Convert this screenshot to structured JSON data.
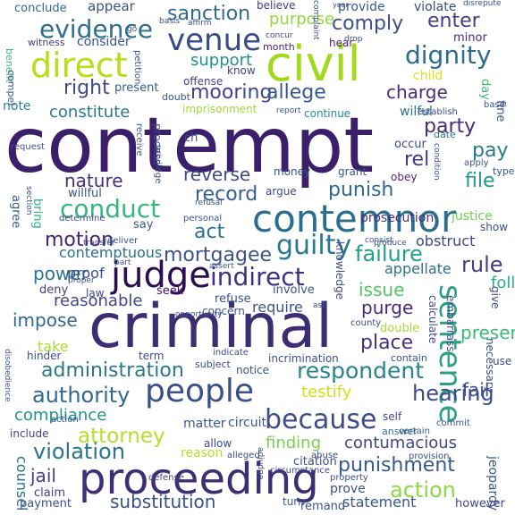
{
  "word_cloud": {
    "words": [
      {
        "text": "contempt",
        "color": "#3b1f6b"
      },
      {
        "text": "criminal",
        "color": "#3d2e74"
      },
      {
        "text": "proceeding",
        "color": "#3e2f75"
      },
      {
        "text": "civil",
        "color": "#a2d91f"
      },
      {
        "text": "contemnor",
        "color": "#2a6d8e"
      },
      {
        "text": "judge",
        "color": "#2a0e4f"
      },
      {
        "text": "people",
        "color": "#3c4f8a"
      },
      {
        "text": "direct",
        "color": "#b7de1a"
      },
      {
        "text": "indirect",
        "color": "#3f3182"
      },
      {
        "text": "venue",
        "color": "#394a88"
      },
      {
        "text": "evidence",
        "color": "#2d6f8e"
      },
      {
        "text": "dignity",
        "color": "#2e6c8e"
      },
      {
        "text": "mooring",
        "color": "#414487"
      },
      {
        "text": "sentence",
        "color": "#2d9f87"
      },
      {
        "text": "conduct",
        "color": "#36b77b"
      },
      {
        "text": "guilty",
        "color": "#2a788e"
      },
      {
        "text": "motion",
        "color": "#482576"
      },
      {
        "text": "mortgagee",
        "color": "#3b5289"
      },
      {
        "text": "because",
        "color": "#3e4c8a"
      },
      {
        "text": "respondent",
        "color": "#25848e"
      },
      {
        "text": "authority",
        "color": "#2f6b8e"
      },
      {
        "text": "hearing",
        "color": "#3f4a8a"
      },
      {
        "text": "attorney",
        "color": "#b5de2b"
      },
      {
        "text": "action",
        "color": "#8fd744"
      },
      {
        "text": "punishment",
        "color": "#38578c"
      },
      {
        "text": "administration",
        "color": "#29798e"
      },
      {
        "text": "violation",
        "color": "#2c738e"
      },
      {
        "text": "substitution",
        "color": "#3b508a"
      },
      {
        "text": "comply",
        "color": "#3d4d8a"
      },
      {
        "text": "enter",
        "color": "#433e85"
      },
      {
        "text": "sanction",
        "color": "#2f6b8e"
      },
      {
        "text": "right",
        "color": "#3f4889"
      },
      {
        "text": "allege",
        "color": "#39568c"
      },
      {
        "text": "charge",
        "color": "#472d7b"
      },
      {
        "text": "party",
        "color": "#472c7a"
      },
      {
        "text": "rel",
        "color": "#453781"
      },
      {
        "text": "pay",
        "color": "#2a788e"
      },
      {
        "text": "file",
        "color": "#1f9a8a"
      },
      {
        "text": "punish",
        "color": "#31688e"
      },
      {
        "text": "record",
        "color": "#365d8d"
      },
      {
        "text": "reverse",
        "color": "#3e4a89"
      },
      {
        "text": "nature",
        "color": "#46307e"
      },
      {
        "text": "act",
        "color": "#2c728e"
      },
      {
        "text": "rule",
        "color": "#433e85"
      },
      {
        "text": "failure",
        "color": "#1fa187"
      },
      {
        "text": "power",
        "color": "#2a768e"
      },
      {
        "text": "issue",
        "color": "#52c569"
      },
      {
        "text": "purge",
        "color": "#472a7a"
      },
      {
        "text": "impose",
        "color": "#31688e"
      },
      {
        "text": "place",
        "color": "#46337f"
      },
      {
        "text": "presence",
        "color": "#3aba76"
      },
      {
        "text": "follow",
        "color": "#2ab07f"
      },
      {
        "text": "testify",
        "color": "#cde11d"
      },
      {
        "text": "fail",
        "color": "#3b528b"
      },
      {
        "text": "compliance",
        "color": "#21918c"
      },
      {
        "text": "contumacious",
        "color": "#3f4889"
      },
      {
        "text": "finding",
        "color": "#7ad151"
      },
      {
        "text": "counsel",
        "color": "#2c728e"
      },
      {
        "text": "jail",
        "color": "#433e85"
      },
      {
        "text": "statement",
        "color": "#3a548c"
      },
      {
        "text": "reasonable",
        "color": "#404688"
      },
      {
        "text": "support",
        "color": "#21918c"
      },
      {
        "text": "purpose",
        "color": "#95d840"
      },
      {
        "text": "constitute",
        "color": "#2a788e"
      },
      {
        "text": "proof",
        "color": "#3e4c8a"
      },
      {
        "text": "contemptuous",
        "color": "#2e6e8e"
      },
      {
        "text": "appellate",
        "color": "#2d708e"
      },
      {
        "text": "obstruct",
        "color": "#3f4788"
      },
      {
        "text": "prosecution",
        "color": "#46307e"
      },
      {
        "text": "justice",
        "color": "#6ece58"
      },
      {
        "text": "take",
        "color": "#aadc32"
      },
      {
        "text": "reason",
        "color": "#b8de29"
      },
      {
        "text": "require",
        "color": "#3b528b"
      },
      {
        "text": "record",
        "color": "#365d8d"
      },
      {
        "text": "conclude",
        "color": "#2f6c8e"
      },
      {
        "text": "appear",
        "color": "#3a538b"
      },
      {
        "text": "provide",
        "color": "#38588c"
      },
      {
        "text": "violate",
        "color": "#3f4889"
      },
      {
        "text": "believe",
        "color": "#443a83"
      },
      {
        "text": "consider",
        "color": "#3b518b"
      },
      {
        "text": "witness",
        "color": "#433e85"
      },
      {
        "text": "hear",
        "color": "#482374"
      },
      {
        "text": "minor",
        "color": "#472d7b"
      },
      {
        "text": "month",
        "color": "#482677"
      },
      {
        "text": "know",
        "color": "#404588"
      },
      {
        "text": "present",
        "color": "#365c8d"
      },
      {
        "text": "offense",
        "color": "#414487"
      },
      {
        "text": "doubt",
        "color": "#38588c"
      },
      {
        "text": "note",
        "color": "#24868e"
      },
      {
        "text": "imprisonment",
        "color": "#a0da39"
      },
      {
        "text": "continue",
        "color": "#21918c"
      },
      {
        "text": "wilful",
        "color": "#2c728e"
      },
      {
        "text": "child",
        "color": "#d8e219"
      },
      {
        "text": "date",
        "color": "#2e6f8e"
      },
      {
        "text": "occur",
        "color": "#3e4989"
      },
      {
        "text": "obey",
        "color": "#482878"
      },
      {
        "text": "money",
        "color": "#3b528b"
      },
      {
        "text": "grant",
        "color": "#3b528b"
      },
      {
        "text": "willful",
        "color": "#3c508b"
      },
      {
        "text": "argue",
        "color": "#3e4a89"
      },
      {
        "text": "agree",
        "color": "#365d8d"
      },
      {
        "text": "bring",
        "color": "#2ab07f"
      },
      {
        "text": "say",
        "color": "#38588c"
      },
      {
        "text": "show",
        "color": "#3d4e8a"
      },
      {
        "text": "seek",
        "color": "#471063"
      },
      {
        "text": "involve",
        "color": "#3b528b"
      },
      {
        "text": "deny",
        "color": "#423f85"
      },
      {
        "text": "law",
        "color": "#3f4889"
      },
      {
        "text": "refuse",
        "color": "#3b518b"
      },
      {
        "text": "concern",
        "color": "#3a548c"
      },
      {
        "text": "double",
        "color": "#a8db34"
      },
      {
        "text": "contain",
        "color": "#3c4f8a"
      },
      {
        "text": "notice",
        "color": "#3c4f8a"
      },
      {
        "text": "incrimination",
        "color": "#3d4e8a"
      },
      {
        "text": "term",
        "color": "#3f4889"
      },
      {
        "text": "matter",
        "color": "#3a548c"
      },
      {
        "text": "circuit",
        "color": "#3b528b"
      },
      {
        "text": "allow",
        "color": "#3f4889"
      },
      {
        "text": "citation",
        "color": "#3d4e8a"
      },
      {
        "text": "include",
        "color": "#404588"
      },
      {
        "text": "claim",
        "color": "#423f85"
      },
      {
        "text": "payment",
        "color": "#3b528b"
      },
      {
        "text": "prove",
        "color": "#3d4d8a"
      },
      {
        "text": "turn",
        "color": "#39568c"
      },
      {
        "text": "remand",
        "color": "#3a548c"
      },
      {
        "text": "jeopardy",
        "color": "#3a548c"
      },
      {
        "text": "hinder",
        "color": "#3b518b"
      },
      {
        "text": "self",
        "color": "#3f4889"
      },
      {
        "text": "answer",
        "color": "#2c738e"
      },
      {
        "text": "however",
        "color": "#3f4889"
      },
      {
        "text": "embarrass",
        "color": "#3e4c8a"
      },
      {
        "text": "necessary",
        "color": "#3e4a89"
      },
      {
        "text": "calculate",
        "color": "#3e4a89"
      },
      {
        "text": "give",
        "color": "#3e4a89"
      },
      {
        "text": "use",
        "color": "#3e4a89"
      },
      {
        "text": "ch",
        "color": "#3b528b"
      },
      {
        "text": "process",
        "color": "#3b528b"
      },
      {
        "text": "benefit",
        "color": "#3aba76"
      },
      {
        "text": "compel",
        "color": "#3b528b"
      },
      {
        "text": "defense",
        "color": "#3e4a89"
      },
      {
        "text": "subject",
        "color": "#3e4a89"
      },
      {
        "text": "personal",
        "color": "#3b528b"
      },
      {
        "text": "deliver",
        "color": "#3b528b"
      },
      {
        "text": "establish",
        "color": "#3e4a89"
      },
      {
        "text": "report",
        "color": "#3b528b"
      },
      {
        "text": "request",
        "color": "#3b528b"
      },
      {
        "text": "receive",
        "color": "#3b528b"
      },
      {
        "text": "determine",
        "color": "#3e4a89"
      },
      {
        "text": "apply",
        "color": "#3b528b"
      },
      {
        "text": "type",
        "color": "#3b528b"
      },
      {
        "text": "county",
        "color": "#3e4a89"
      },
      {
        "text": "opportunity",
        "color": "#3e4a89"
      },
      {
        "text": "certain",
        "color": "#3b528b"
      },
      {
        "text": "commit",
        "color": "#3b528b"
      },
      {
        "text": "provision",
        "color": "#3e4a89"
      },
      {
        "text": "circumstance",
        "color": "#3e4a89"
      },
      {
        "text": "property",
        "color": "#3e4a89"
      },
      {
        "text": "abuse",
        "color": "#3e4a89"
      },
      {
        "text": "alleged",
        "color": "#3e4a89"
      },
      {
        "text": "transfer",
        "color": "#3b528b"
      },
      {
        "text": "part",
        "color": "#3e4a89"
      },
      {
        "text": "petition",
        "color": "#3b528b"
      },
      {
        "text": "basis",
        "color": "#3e4a89"
      },
      {
        "text": "affirm",
        "color": "#3e4a89"
      },
      {
        "text": "complaint",
        "color": "#3b528b"
      },
      {
        "text": "concur",
        "color": "#3e4a89"
      },
      {
        "text": "go",
        "color": "#3e4a89"
      },
      {
        "text": "year",
        "color": "#3e4a89"
      },
      {
        "text": "base",
        "color": "#3b528b"
      },
      {
        "text": "day",
        "color": "#3aba76"
      },
      {
        "text": "refusal",
        "color": "#3b528b"
      },
      {
        "text": "adjudge",
        "color": "#3e4a89"
      },
      {
        "text": "disobedience",
        "color": "#3b528b"
      },
      {
        "text": "assert",
        "color": "#3b528b"
      },
      {
        "text": "proper",
        "color": "#3b528b"
      },
      {
        "text": "indicate",
        "color": "#3e4a89"
      },
      {
        "text": "privilege",
        "color": "#3b528b"
      },
      {
        "text": "consist",
        "color": "#3b528b"
      },
      {
        "text": "produce",
        "color": "#3b528b"
      },
      {
        "text": "knowledge",
        "color": "#3e4a89"
      },
      {
        "text": "section",
        "color": "#3b528b"
      },
      {
        "text": "ask",
        "color": "#3e4a89"
      },
      {
        "text": "condition",
        "color": "#3b528b"
      },
      {
        "text": "fine",
        "color": "#3b528b"
      },
      {
        "text": "disrepute",
        "color": "#3b528b"
      },
      {
        "text": "drop",
        "color": "#3e4a89"
      },
      {
        "text": "action",
        "color": "#3b528b"
      }
    ]
  }
}
